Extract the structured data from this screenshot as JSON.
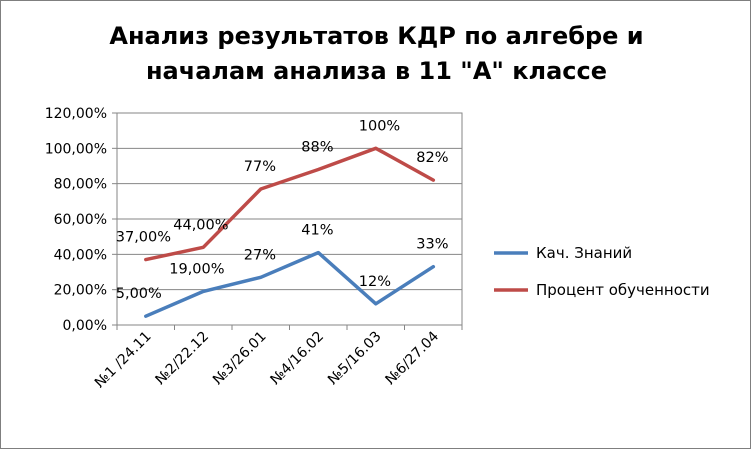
{
  "chart_data": {
    "type": "line",
    "title_line1": "Анализ результатов  КДР по алгебре и",
    "title_line2": "началам анализа в 11 \"А\" классе",
    "categories": [
      "№1 /24.11",
      "№2/22.12",
      "№3/26.01",
      "№4/16.02",
      "№5/16.03",
      "№6/27.04"
    ],
    "y_ticks": [
      "0,00%",
      "20,00%",
      "40,00%",
      "60,00%",
      "80,00%",
      "100,00%",
      "120,00%"
    ],
    "ylim": [
      0,
      120
    ],
    "grid": "horizontal",
    "legend_position": "right",
    "series": [
      {
        "name": "Кач. Знаний",
        "color": "#4a7ebb",
        "values": [
          5,
          19,
          27,
          41,
          12,
          33
        ],
        "labels": [
          "5,00%",
          "19,00%",
          "27%",
          "41%",
          "12%",
          "33%"
        ]
      },
      {
        "name": "Процент обученности",
        "color": "#be4b48",
        "values": [
          37,
          44,
          77,
          88,
          100,
          82
        ],
        "labels": [
          "37,00%",
          "44,00%",
          "77%",
          "88%",
          "100%",
          "82%"
        ]
      }
    ]
  }
}
